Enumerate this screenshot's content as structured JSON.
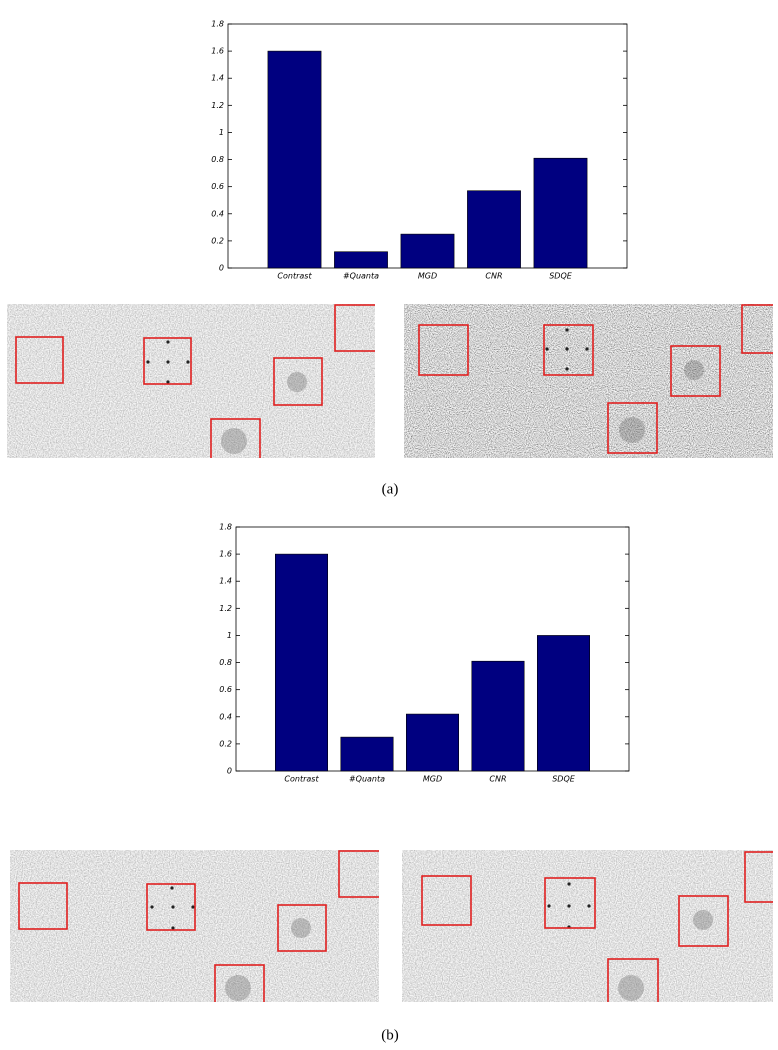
{
  "chart_data": [
    {
      "type": "bar",
      "categories": [
        "Contrast",
        "#Quanta",
        "MGD",
        "CNR",
        "SDQE"
      ],
      "values": [
        1.6,
        0.12,
        0.25,
        0.57,
        0.81
      ],
      "color": "#000080",
      "ylim": [
        0,
        1.8
      ],
      "yticks": [
        0,
        0.2,
        0.4,
        0.6,
        0.8,
        1,
        1.2,
        1.4,
        1.6,
        1.8
      ],
      "caption": "(a)"
    },
    {
      "type": "bar",
      "categories": [
        "Contrast",
        "#Quanta",
        "MGD",
        "CNR",
        "SDQE"
      ],
      "values": [
        1.6,
        0.25,
        0.42,
        0.81,
        1.0
      ],
      "color": "#000080",
      "ylim": [
        0,
        1.8
      ],
      "yticks": [
        0,
        0.2,
        0.4,
        0.6,
        0.8,
        1,
        1.2,
        1.4,
        1.6,
        1.8
      ],
      "caption": "(b)"
    }
  ]
}
